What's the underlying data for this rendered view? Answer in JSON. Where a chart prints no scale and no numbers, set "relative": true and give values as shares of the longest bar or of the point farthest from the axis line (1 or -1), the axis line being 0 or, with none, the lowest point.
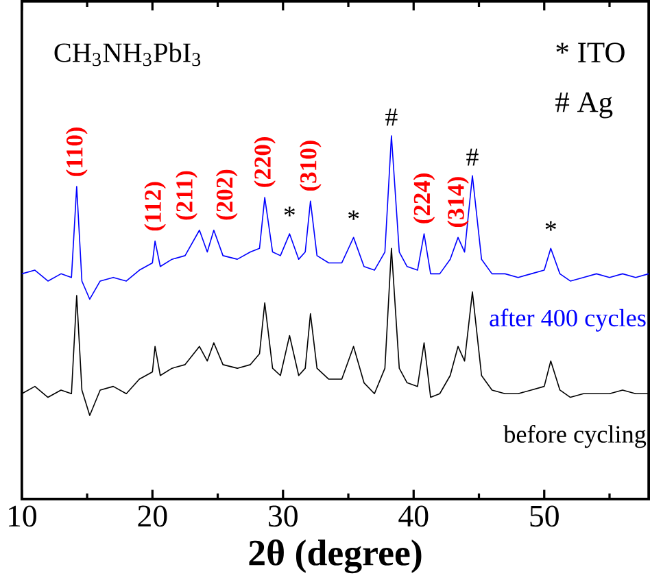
{
  "chart_data": {
    "type": "line",
    "relative": true,
    "xlabel": "2θ (degree)",
    "x": [
      10,
      11,
      12,
      13,
      13.8,
      14.2,
      14.6,
      15.2,
      16,
      17,
      18,
      19,
      20,
      20.2,
      20.6,
      21.5,
      22.5,
      23.6,
      24.2,
      24.7,
      25.4,
      26.5,
      27.5,
      28.2,
      28.6,
      29.2,
      29.8,
      30.5,
      31.2,
      31.7,
      32.1,
      32.6,
      33.5,
      34.5,
      35.4,
      36.2,
      37,
      37.8,
      38.3,
      38.9,
      39.5,
      40.3,
      40.8,
      41.3,
      42,
      42.8,
      43.4,
      43.9,
      44.5,
      45.2,
      46,
      47,
      48,
      49,
      50,
      50.5,
      51.2,
      52,
      53,
      54,
      55,
      56,
      57,
      58
    ],
    "xlim": [
      10,
      58
    ],
    "xticks": [
      10,
      20,
      30,
      40,
      50
    ],
    "series": [
      {
        "name": "after 400 cycles",
        "color": "#0000ff",
        "values": [
          0.62,
          0.63,
          0.6,
          0.62,
          0.61,
          0.86,
          0.6,
          0.55,
          0.6,
          0.61,
          0.6,
          0.63,
          0.65,
          0.71,
          0.64,
          0.66,
          0.67,
          0.74,
          0.68,
          0.74,
          0.67,
          0.66,
          0.68,
          0.69,
          0.83,
          0.68,
          0.67,
          0.73,
          0.66,
          0.68,
          0.82,
          0.67,
          0.65,
          0.65,
          0.72,
          0.64,
          0.63,
          0.68,
          1,
          0.68,
          0.64,
          0.63,
          0.73,
          0.62,
          0.62,
          0.66,
          0.72,
          0.68,
          0.89,
          0.66,
          0.62,
          0.62,
          0.61,
          0.62,
          0.63,
          0.69,
          0.62,
          0.6,
          0.61,
          0.62,
          0.61,
          0.62,
          0.61,
          0.62
        ]
      },
      {
        "name": "before cycling",
        "color": "#000000",
        "values": [
          0.29,
          0.31,
          0.28,
          0.3,
          0.29,
          0.56,
          0.3,
          0.23,
          0.3,
          0.31,
          0.29,
          0.33,
          0.35,
          0.42,
          0.34,
          0.36,
          0.37,
          0.42,
          0.38,
          0.43,
          0.37,
          0.36,
          0.37,
          0.4,
          0.54,
          0.36,
          0.34,
          0.45,
          0.34,
          0.36,
          0.51,
          0.36,
          0.33,
          0.33,
          0.42,
          0.32,
          0.29,
          0.36,
          0.69,
          0.36,
          0.32,
          0.31,
          0.43,
          0.28,
          0.29,
          0.34,
          0.42,
          0.38,
          0.57,
          0.34,
          0.3,
          0.29,
          0.29,
          0.3,
          0.31,
          0.38,
          0.3,
          0.28,
          0.29,
          0.29,
          0.29,
          0.3,
          0.29,
          0.29
        ]
      }
    ],
    "annotations": [
      {
        "text": "(110)",
        "x": 14.2,
        "y": 0.86
      },
      {
        "text": "(112)",
        "x": 20.2,
        "y": 0.71
      },
      {
        "text": "(211)",
        "x": 23.6,
        "y": 0.74
      },
      {
        "text": "(202)",
        "x": 24.7,
        "y": 0.74
      },
      {
        "text": "(220)",
        "x": 28.6,
        "y": 0.83
      },
      {
        "text": "(310)",
        "x": 32.1,
        "y": 0.82
      },
      {
        "text": "(224)",
        "x": 40.8,
        "y": 0.73
      },
      {
        "text": "(314)",
        "x": 43.4,
        "y": 0.72
      },
      {
        "text": "*",
        "x": 30.5,
        "y": 0.73
      },
      {
        "text": "*",
        "x": 35.4,
        "y": 0.72
      },
      {
        "text": "#",
        "x": 38.3,
        "y": 1
      },
      {
        "text": "#",
        "x": 44.5,
        "y": 0.89
      },
      {
        "text": "*",
        "x": 50.5,
        "y": 0.69
      },
      "CH$_{3}$NH$_{3}$PbI$_{3}$",
      "* ITO",
      "# Ag"
    ]
  }
}
